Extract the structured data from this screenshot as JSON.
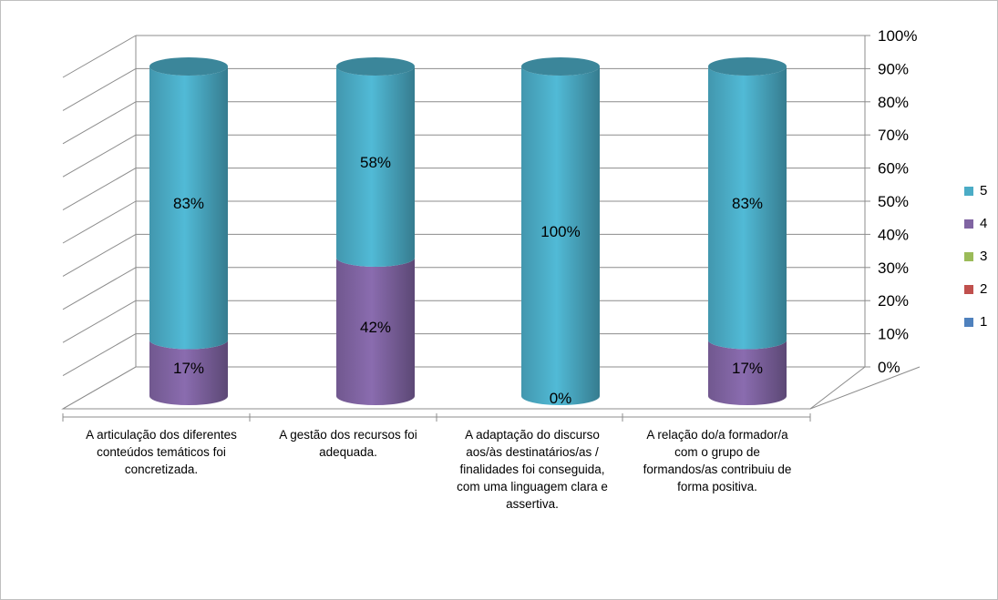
{
  "chart_data": {
    "type": "bar",
    "stacked": true,
    "percent_stacked": true,
    "style": "3d-cylinder",
    "categories": [
      "A articulação dos diferentes conteúdos temáticos foi concretizada.",
      "A gestão dos recursos foi adequada.",
      "A adaptação do discurso aos/às destinatários/as / finalidades foi conseguida, com uma linguagem clara e assertiva.",
      "A relação do/a formador/a com o grupo de formandos/as contribuiu de forma positiva."
    ],
    "series": [
      {
        "name": "1",
        "color": "#4f81bd",
        "values": [
          0,
          0,
          0,
          0
        ]
      },
      {
        "name": "2",
        "color": "#c0504d",
        "values": [
          0,
          0,
          0,
          0
        ]
      },
      {
        "name": "3",
        "color": "#9bbb59",
        "values": [
          0,
          0,
          0,
          0
        ]
      },
      {
        "name": "4",
        "color": "#8064a2",
        "values": [
          17,
          42,
          0,
          17
        ]
      },
      {
        "name": "5",
        "color": "#4bacc6",
        "values": [
          83,
          58,
          100,
          83
        ]
      }
    ],
    "data_labels": [
      {
        "category": 0,
        "series": "4",
        "text": "17%"
      },
      {
        "category": 0,
        "series": "5",
        "text": "83%"
      },
      {
        "category": 1,
        "series": "4",
        "text": "42%"
      },
      {
        "category": 1,
        "series": "5",
        "text": "58%"
      },
      {
        "category": 2,
        "series": "4",
        "text": "0%"
      },
      {
        "category": 2,
        "series": "5",
        "text": "100%"
      },
      {
        "category": 3,
        "series": "4",
        "text": "17%"
      },
      {
        "category": 3,
        "series": "5",
        "text": "83%"
      }
    ],
    "y_ticks": [
      "0%",
      "10%",
      "20%",
      "30%",
      "40%",
      "50%",
      "60%",
      "70%",
      "80%",
      "90%",
      "100%"
    ],
    "ylim": [
      0,
      100
    ],
    "grid": true,
    "legend_position": "right",
    "legend_order": [
      "5",
      "4",
      "3",
      "2",
      "1"
    ],
    "title": "",
    "xlabel": "",
    "ylabel": ""
  }
}
